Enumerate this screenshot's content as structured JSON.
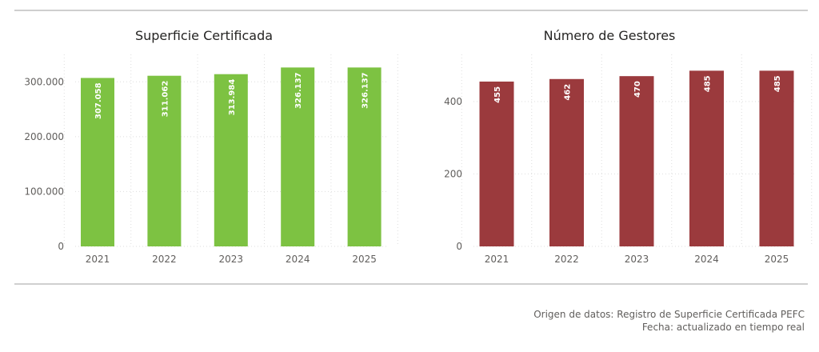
{
  "chart_data": [
    {
      "type": "bar",
      "title": "Superficie Certificada",
      "categories": [
        "2021",
        "2022",
        "2023",
        "2024",
        "2025"
      ],
      "values": [
        307058,
        311062,
        313984,
        326137,
        326137
      ],
      "value_labels": [
        "307.058",
        "311.062",
        "313.984",
        "326.137",
        "326.137"
      ],
      "ylim": [
        0,
        350000
      ],
      "yticks": [
        0,
        100000,
        200000,
        300000
      ],
      "ytick_labels": [
        "0",
        "100.000",
        "200.000",
        "300.000"
      ],
      "color": "#7DC242",
      "grid": true
    },
    {
      "type": "bar",
      "title": "Número de Gestores",
      "categories": [
        "2021",
        "2022",
        "2023",
        "2024",
        "2025"
      ],
      "values": [
        455,
        462,
        470,
        485,
        485
      ],
      "value_labels": [
        "455",
        "462",
        "470",
        "485",
        "485"
      ],
      "ylim": [
        0,
        530
      ],
      "yticks": [
        0,
        200,
        400
      ],
      "ytick_labels": [
        "0",
        "200",
        "400"
      ],
      "color": "#9B3A3D",
      "grid": true
    }
  ],
  "footer": {
    "source": "Origen de datos: Registro de Superficie Certificada PEFC",
    "date": "Fecha: actualizado en tiempo real"
  }
}
